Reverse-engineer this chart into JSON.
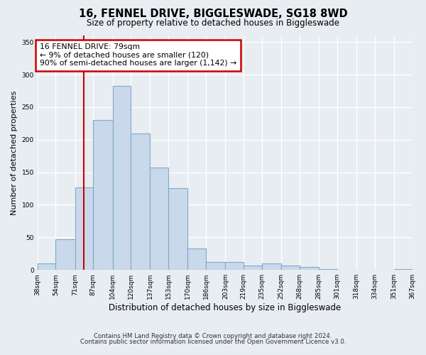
{
  "title": "16, FENNEL DRIVE, BIGGLESWADE, SG18 8WD",
  "subtitle": "Size of property relative to detached houses in Biggleswade",
  "xlabel": "Distribution of detached houses by size in Biggleswade",
  "ylabel": "Number of detached properties",
  "bar_edges": [
    38,
    54,
    71,
    87,
    104,
    120,
    137,
    153,
    170,
    186,
    203,
    219,
    235,
    252,
    268,
    285,
    301,
    318,
    334,
    351,
    367
  ],
  "bar_heights": [
    10,
    47,
    127,
    230,
    283,
    210,
    157,
    126,
    33,
    12,
    12,
    7,
    10,
    7,
    5,
    1,
    0,
    0,
    0,
    1
  ],
  "bar_color": "#c9d8ea",
  "bar_edgecolor": "#7faac8",
  "ylim": [
    0,
    360
  ],
  "yticks": [
    0,
    50,
    100,
    150,
    200,
    250,
    300,
    350
  ],
  "vline_x": 79,
  "vline_color": "#cc0000",
  "annotation_title": "16 FENNEL DRIVE: 79sqm",
  "annotation_line1": "← 9% of detached houses are smaller (120)",
  "annotation_line2": "90% of semi-detached houses are larger (1,142) →",
  "annotation_box_facecolor": "#ffffff",
  "annotation_box_edgecolor": "#cc0000",
  "footnote1": "Contains HM Land Registry data © Crown copyright and database right 2024.",
  "footnote2": "Contains public sector information licensed under the Open Government Licence v3.0.",
  "fig_bg_color": "#e8edf2",
  "plot_bg_color": "#e8edf2",
  "grid_color": "#ffffff",
  "tick_labels": [
    "38sqm",
    "54sqm",
    "71sqm",
    "87sqm",
    "104sqm",
    "120sqm",
    "137sqm",
    "153sqm",
    "170sqm",
    "186sqm",
    "203sqm",
    "219sqm",
    "235sqm",
    "252sqm",
    "268sqm",
    "285sqm",
    "301sqm",
    "318sqm",
    "334sqm",
    "351sqm",
    "367sqm"
  ]
}
